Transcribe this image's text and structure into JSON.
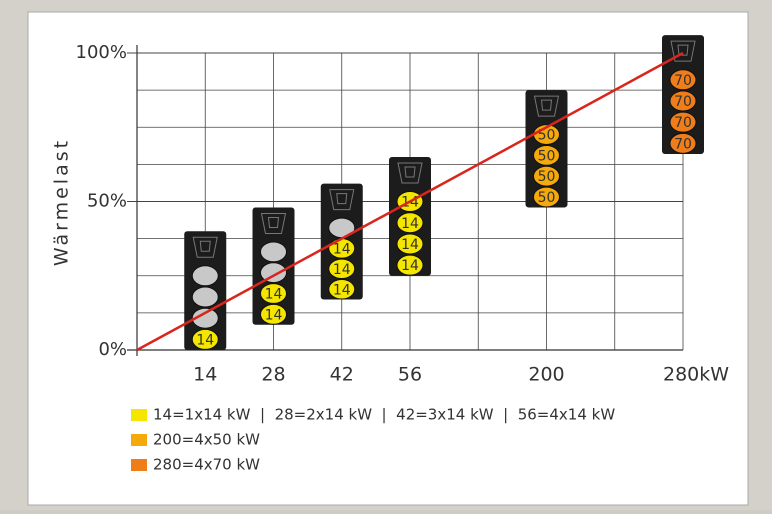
{
  "chart_data": {
    "type": "units",
    "y_label": "Wärmelast",
    "categories": [
      "14",
      "28",
      "42",
      "56",
      null,
      "200",
      null,
      "280kW"
    ],
    "ylim": [
      0,
      100
    ],
    "yticks": [
      {
        "value": 0,
        "label": "0%"
      },
      {
        "value": 50,
        "label": "50%"
      },
      {
        "value": 100,
        "label": "100%"
      }
    ],
    "minor_yticks": [
      12.5,
      25,
      37.5,
      62.5,
      75,
      87.5
    ],
    "grid": true,
    "line": {
      "color": "#d9261c",
      "values": [
        0,
        100
      ]
    },
    "units": [
      {
        "range": [
          0,
          40
        ],
        "color": "#f5e600",
        "labels": [
          null,
          null,
          null,
          "14"
        ]
      },
      {
        "range": [
          8.5,
          48
        ],
        "color": "#f5e600",
        "labels": [
          null,
          null,
          "14",
          "14"
        ]
      },
      {
        "range": [
          17,
          56
        ],
        "color": "#f5e600",
        "labels": [
          null,
          "14",
          "14",
          "14"
        ]
      },
      {
        "range": [
          25,
          65
        ],
        "color": "#f5e600",
        "labels": [
          "14",
          "14",
          "14",
          "14"
        ]
      },
      null,
      {
        "range": [
          48,
          87.5
        ],
        "color": "#f5a90a",
        "labels": [
          "50",
          "50",
          "50",
          "50"
        ]
      },
      null,
      {
        "range": [
          66,
          106
        ],
        "color": "#ef7d1a",
        "labels": [
          "70",
          "70",
          "70",
          "70"
        ]
      }
    ],
    "legend": [
      {
        "color": "#f5e600",
        "text": "14=1x14 kW  |  28=2x14 kW  |  42=3x14 kW  |  56=4x14 kW"
      },
      {
        "color": "#f5a90a",
        "text": "200=4x50 kW"
      },
      {
        "color": "#ef7d1a",
        "text": "280=4x70 kW"
      }
    ]
  }
}
